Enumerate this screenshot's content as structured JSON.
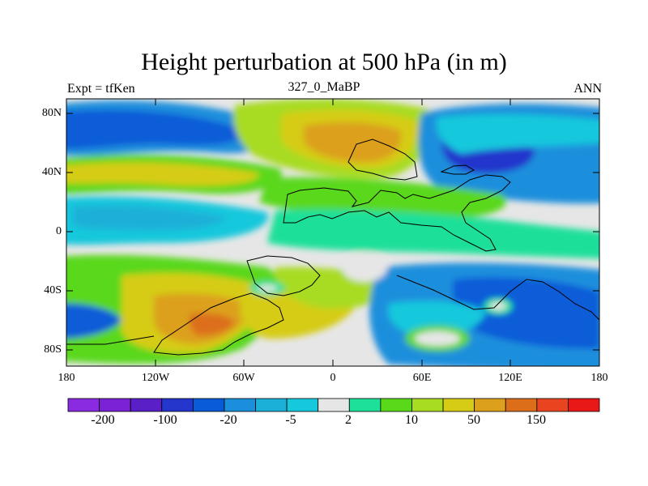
{
  "figure": {
    "title": "Height perturbation at 500 hPa (in m)",
    "left_string": "Expt = tfKen",
    "center_string": "327_0_MaBP",
    "right_string": "ANN"
  },
  "axes": {
    "y_ticks": [
      "80N",
      "40N",
      "0",
      "40S",
      "80S"
    ],
    "x_ticks": [
      "180",
      "120W",
      "60W",
      "0",
      "60E",
      "120E",
      "180"
    ]
  },
  "colorbar": {
    "colors": [
      "#8a2be2",
      "#7b22d6",
      "#5a1fc7",
      "#2436cc",
      "#0a5bd8",
      "#1c8fdc",
      "#1ab0d8",
      "#16c8dc",
      "#e6e6e6",
      "#1de09a",
      "#5ad81a",
      "#a8dc22",
      "#d6cc16",
      "#dca01c",
      "#dc6e1a",
      "#e84420",
      "#e81818"
    ],
    "labels": [
      "-200",
      "-100",
      "-20",
      "-5",
      "2",
      "10",
      "50",
      "150"
    ]
  }
}
